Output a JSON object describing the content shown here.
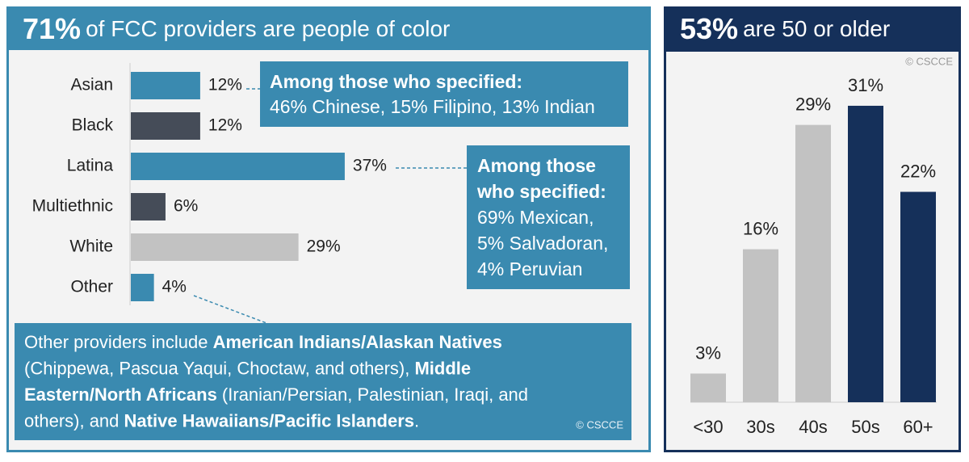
{
  "chart_data": [
    {
      "type": "hbar",
      "title_highlight": "71%",
      "title": "of FCC providers are people of color",
      "categories": [
        "Asian",
        "Black",
        "Latina",
        "Multiethnic",
        "White",
        "Other"
      ],
      "values": [
        12,
        12,
        37,
        6,
        29,
        4
      ],
      "value_labels": [
        "12%",
        "12%",
        "37%",
        "6%",
        "29%",
        "4%"
      ],
      "colors": [
        "#3a8ab0",
        "#454c58",
        "#3a8ab0",
        "#454c58",
        "#c2c2c2",
        "#3a8ab0"
      ],
      "annotations": [
        {
          "heading_lines": [
            "Among those who specified:"
          ],
          "lines": [
            "46% Chinese, 15% Filipino, 13% Indian"
          ]
        },
        {
          "heading_lines": [
            "Among those",
            "who specified:"
          ],
          "lines": [
            "69% Mexican,",
            "5% Salvadoran,",
            "4% Peruvian"
          ]
        },
        {
          "rich_lines": [
            [
              {
                "text": "Other providers include ",
                "bold": false
              },
              {
                "text": "American Indians/Alaskan Natives",
                "bold": true
              }
            ],
            [
              {
                "text": "(Chippewa, Pascua Yaqui, Choctaw, and others), ",
                "bold": false
              },
              {
                "text": "Middle",
                "bold": true
              }
            ],
            [
              {
                "text": "Eastern/North Africans",
                "bold": true
              },
              {
                "text": " (Iranian/Persian, Palestinian, Iraqi, and",
                "bold": false
              }
            ],
            [
              {
                "text": "others), and ",
                "bold": false
              },
              {
                "text": "Native Hawaiians/Pacific Islanders",
                "bold": true
              },
              {
                "text": ".",
                "bold": false
              }
            ]
          ]
        }
      ],
      "credit": "© CSCCE"
    },
    {
      "type": "bar",
      "title_highlight": "53%",
      "title": "are 50 or older",
      "categories": [
        "<30",
        "30s",
        "40s",
        "50s",
        "60+"
      ],
      "values": [
        3,
        16,
        29,
        31,
        22
      ],
      "value_labels": [
        "3%",
        "16%",
        "29%",
        "31%",
        "22%"
      ],
      "colors": [
        "#c2c2c2",
        "#c2c2c2",
        "#c2c2c2",
        "#15305a",
        "#15305a"
      ],
      "credit": "© CSCCE"
    }
  ]
}
